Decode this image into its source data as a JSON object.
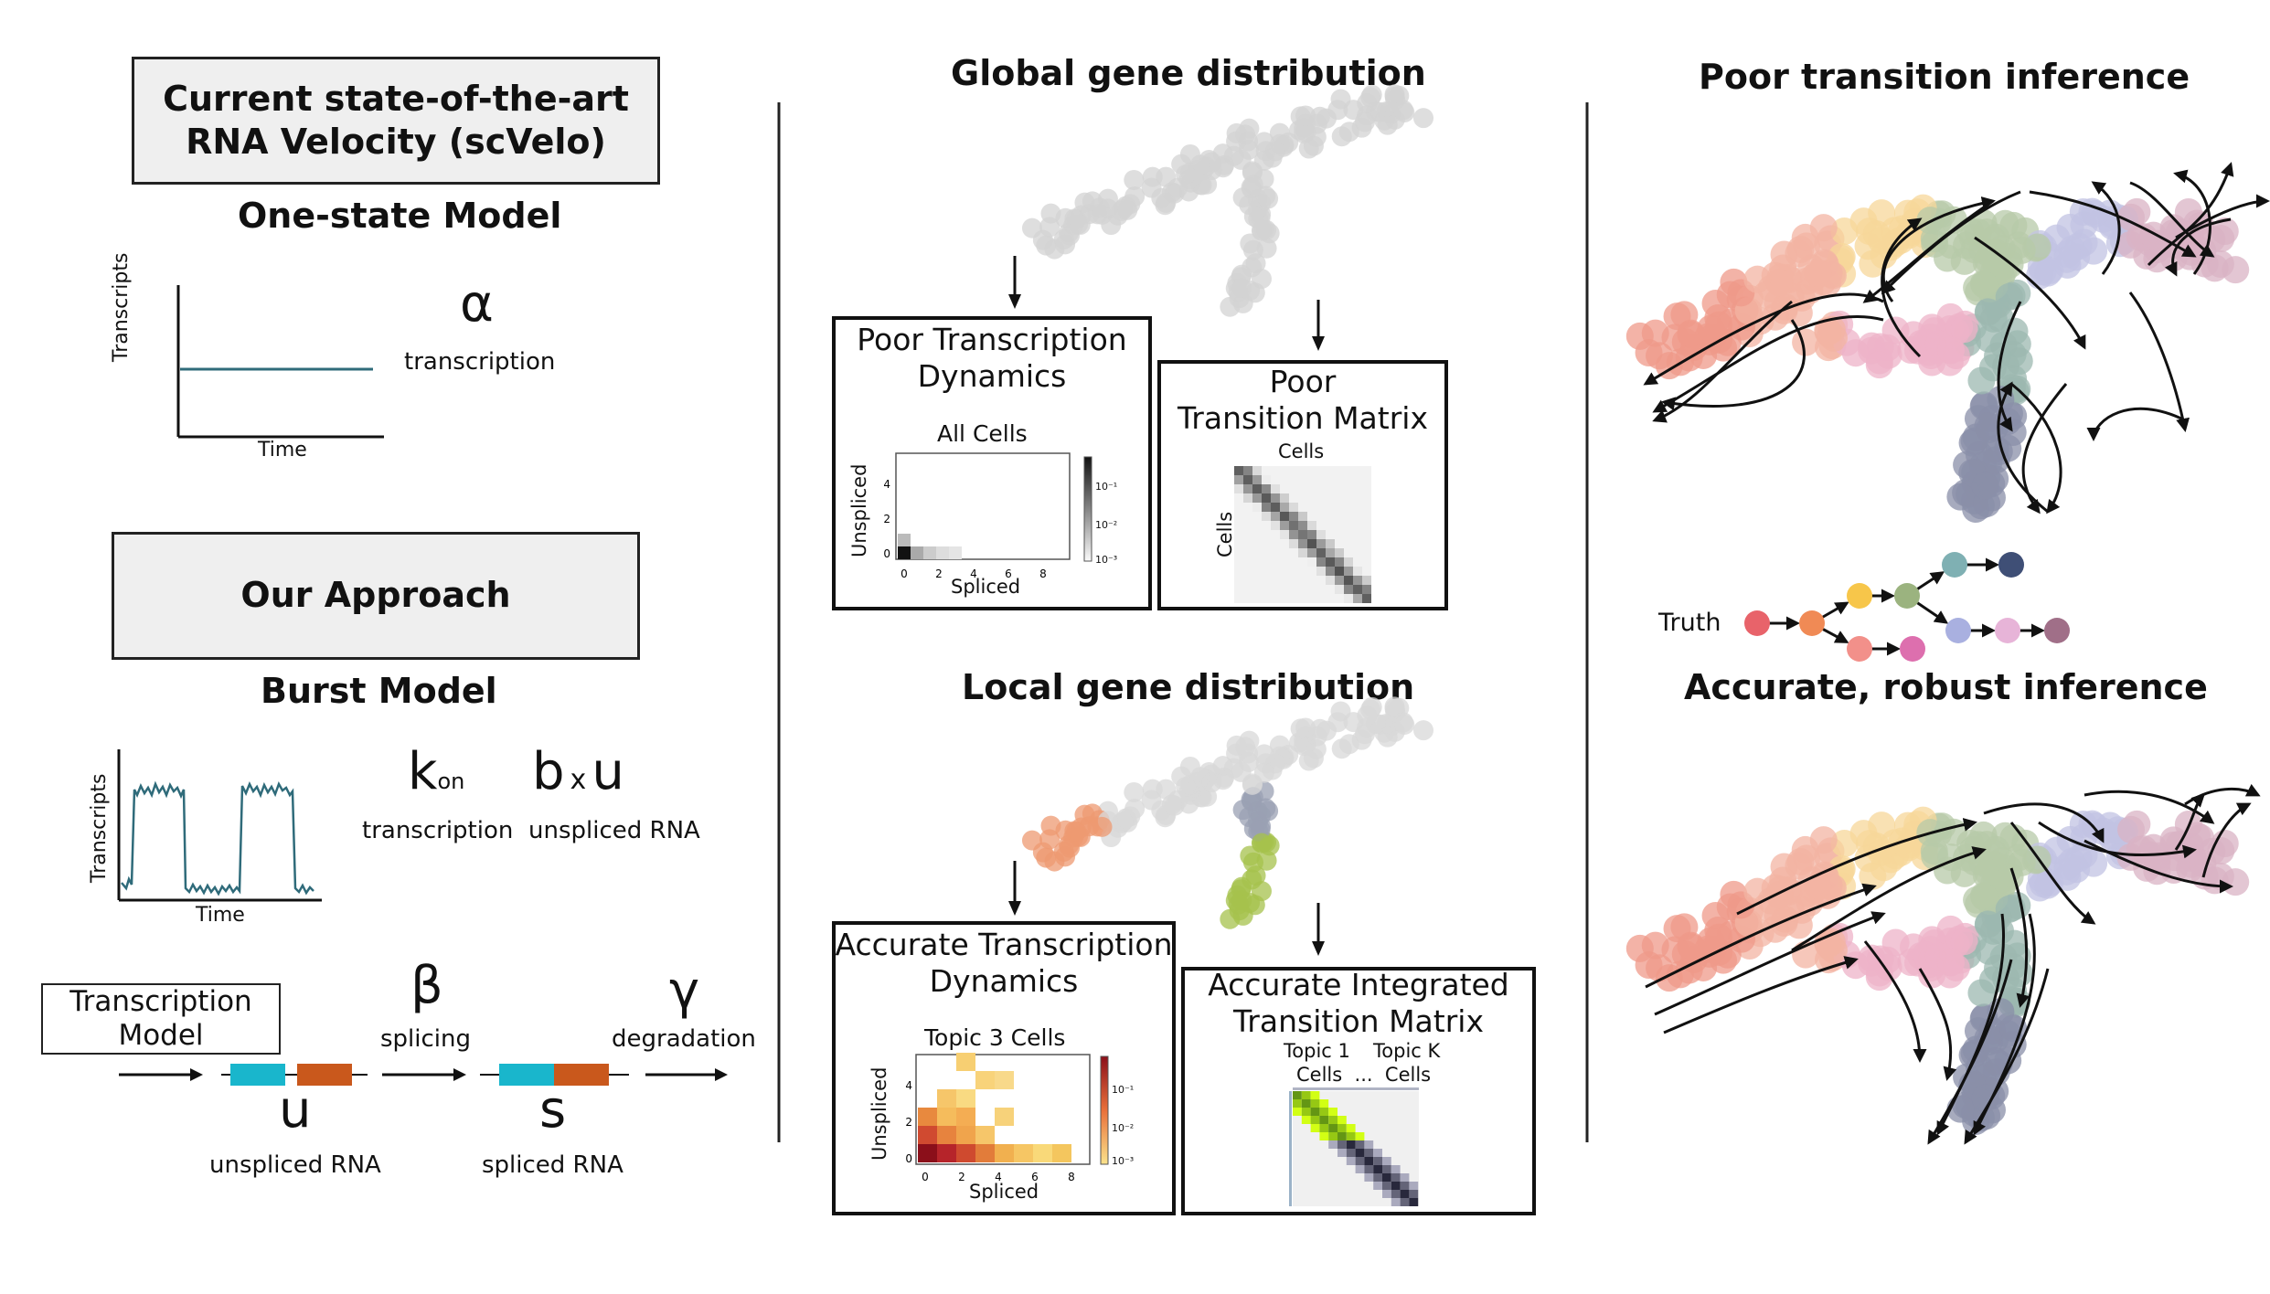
{
  "left": {
    "current_title_1": "Current state-of-the-art",
    "current_title_2": "RNA Velocity (scVelo)",
    "one_state_title": "One-state Model",
    "one_state_ylabel": "Transcripts",
    "one_state_xlabel": "Time",
    "alpha_symbol": "α",
    "alpha_label": "transcription",
    "our_approach": "Our Approach",
    "burst_title": "Burst Model",
    "burst_ylabel": "Transcripts",
    "burst_xlabel": "Time",
    "kon_symbol": "k",
    "kon_sub": "on",
    "kon_label": "transcription",
    "bu_b": "b",
    "bu_x": "x",
    "bu_u": "u",
    "bu_label": "unspliced RNA",
    "transcription_model_1": "Transcription",
    "transcription_model_2": "Model",
    "beta_symbol": "β",
    "beta_label": "splicing",
    "gamma_symbol": "γ",
    "gamma_label": "degradation",
    "u_symbol": "u",
    "u_label": "unspliced RNA",
    "s_symbol": "s",
    "s_label": "spliced RNA"
  },
  "middle": {
    "global_title": "Global gene distribution",
    "poor_dynamics_1": "Poor Transcription",
    "poor_dynamics_2": "Dynamics",
    "all_cells": "All Cells",
    "unspliced": "Unspliced",
    "spliced": "Spliced",
    "poor_matrix_1": "Poor",
    "poor_matrix_2": "Transition Matrix",
    "cells": "Cells",
    "local_title": "Local gene distribution",
    "acc_dynamics_1": "Accurate Transcription",
    "acc_dynamics_2": "Dynamics",
    "topic3": "Topic 3 Cells",
    "acc_matrix_1": "Accurate Integrated",
    "acc_matrix_2": "Transition Matrix",
    "topic1": "Topic 1",
    "topick": "Topic K",
    "cells_dots": "Cells  ...  Cells",
    "ticks_x": [
      "0",
      "2",
      "4",
      "6",
      "8"
    ],
    "ticks_y": [
      "0",
      "2",
      "4"
    ],
    "cbar_ticks": [
      "10⁻¹",
      "10⁻²",
      "10⁻³"
    ]
  },
  "right": {
    "poor_title": "Poor transition inference",
    "truth": "Truth",
    "accurate_title": "Accurate, robust inference"
  },
  "colors": {
    "teal_line": "#2f6b7a",
    "cyan_exon": "#19b6cc",
    "orange_exon": "#c9581c",
    "grey_cells": "#cfcfcf"
  }
}
